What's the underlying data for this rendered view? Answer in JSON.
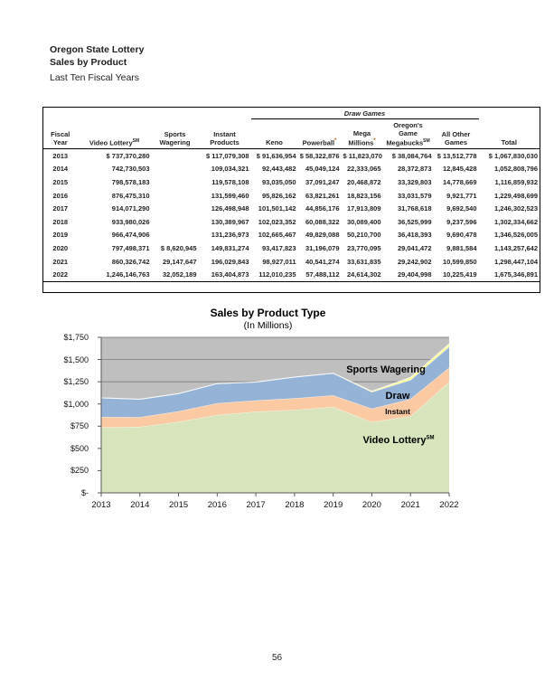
{
  "page": {
    "header": {
      "line1": "Oregon State Lottery",
      "line2": "Sales by Product",
      "line3": "Last Ten Fiscal Years"
    },
    "page_number": "56"
  },
  "table": {
    "group_header": "Draw Games",
    "columns": [
      {
        "key": "year",
        "label": "Fiscal\nYear"
      },
      {
        "key": "video_lottery",
        "label": "Video Lottery",
        "sup": "SM"
      },
      {
        "key": "sports_wagering",
        "label": "Sports\nWagering"
      },
      {
        "key": "instant",
        "label": "Instant\nProducts"
      },
      {
        "key": "keno",
        "label": "Keno",
        "group": "draw"
      },
      {
        "key": "powerball",
        "label": "Powerball",
        "mark": "*",
        "group": "draw"
      },
      {
        "key": "mega_millions",
        "label": "Mega\nMillions",
        "mark": "*",
        "group": "draw"
      },
      {
        "key": "megabucks",
        "label": "Oregon's\nGame\nMegabucks",
        "sup": "SM",
        "group": "draw"
      },
      {
        "key": "all_other",
        "label": "All Other\nGames",
        "group": "draw"
      },
      {
        "key": "total",
        "label": "Total"
      }
    ],
    "rows": [
      [
        "2013",
        "$ 737,370,280",
        "",
        "$ 117,079,308",
        "$ 91,636,954",
        "$ 58,322,876",
        "$ 11,823,070",
        "$ 38,084,764",
        "$ 13,512,778",
        "$ 1,067,830,030"
      ],
      [
        "2014",
        "742,730,503",
        "",
        "109,034,321",
        "92,443,482",
        "45,049,124",
        "22,333,065",
        "28,372,873",
        "12,845,428",
        "1,052,808,796"
      ],
      [
        "2015",
        "798,578,183",
        "",
        "119,578,108",
        "93,035,050",
        "37,091,247",
        "20,468,872",
        "33,329,803",
        "14,778,669",
        "1,116,859,932"
      ],
      [
        "2016",
        "876,475,310",
        "",
        "131,599,460",
        "95,826,162",
        "63,821,261",
        "18,823,156",
        "33,031,579",
        "9,921,771",
        "1,229,498,699"
      ],
      [
        "2017",
        "914,071,290",
        "",
        "126,498,948",
        "101,501,142",
        "44,856,176",
        "17,913,809",
        "31,768,618",
        "9,692,540",
        "1,246,302,523"
      ],
      [
        "2018",
        "933,980,026",
        "",
        "130,389,967",
        "102,023,352",
        "60,088,322",
        "30,089,400",
        "36,525,999",
        "9,237,596",
        "1,302,334,662"
      ],
      [
        "2019",
        "966,474,906",
        "",
        "131,236,973",
        "102,665,467",
        "49,829,088",
        "50,210,700",
        "36,418,393",
        "9,690,478",
        "1,346,526,005"
      ],
      [
        "2020",
        "797,498,371",
        "$ 8,620,945",
        "149,831,274",
        "93,417,823",
        "31,196,079",
        "23,770,095",
        "29,041,472",
        "9,881,584",
        "1,143,257,642"
      ],
      [
        "2021",
        "860,326,742",
        "29,147,647",
        "196,029,843",
        "98,927,011",
        "40,541,274",
        "33,631,835",
        "29,242,902",
        "10,599,850",
        "1,298,447,104"
      ],
      [
        "2022",
        "1,246,146,763",
        "32,052,189",
        "163,404,873",
        "112,010,235",
        "57,488,112",
        "24,614,302",
        "29,404,998",
        "10,225,419",
        "1,675,346,891"
      ]
    ]
  },
  "chart_data": {
    "type": "area",
    "stacked": true,
    "title": "Sales by Product Type",
    "subtitle": "(In Millions)",
    "x": [
      "2013",
      "2014",
      "2015",
      "2016",
      "2017",
      "2018",
      "2019",
      "2020",
      "2021",
      "2022"
    ],
    "series": [
      {
        "name": "Video Lottery℠",
        "color": "#d7e4bc",
        "values": [
          737.37,
          742.73,
          798.58,
          876.48,
          914.07,
          933.98,
          966.47,
          797.5,
          860.33,
          1246.15
        ]
      },
      {
        "name": "Instant",
        "color": "#fbcaa2",
        "values": [
          117.08,
          109.03,
          119.58,
          131.6,
          126.5,
          130.39,
          131.24,
          149.83,
          196.03,
          163.4
        ]
      },
      {
        "name": "Draw",
        "color": "#95b3d7",
        "values": [
          213.38,
          201.04,
          198.7,
          221.42,
          205.73,
          237.96,
          248.81,
          187.31,
          212.94,
          233.74
        ]
      },
      {
        "name": "Sports Wagering",
        "color": "#ffff99",
        "values": [
          0,
          0,
          0,
          0,
          0,
          0,
          0,
          8.62,
          29.15,
          32.05
        ]
      }
    ],
    "ylim": [
      0,
      1750
    ],
    "ytick_step": 250,
    "yticks": [
      "$-",
      "$250",
      "$500",
      "$750",
      "$1,000",
      "$1,250",
      "$1,500",
      "$1,750"
    ],
    "grid": true,
    "legend_position": "none",
    "plot_bg": "#bfbfbf",
    "grid_color": "#6f6f6f",
    "axis_color": "#595959",
    "annotations": [
      {
        "text": "Sports Wagering",
        "x": 427,
        "y": 74,
        "size": 11
      },
      {
        "text": "Draw",
        "x": 440,
        "y": 103,
        "size": 11
      },
      {
        "text": "Instant",
        "x": 440,
        "y": 120,
        "size": 8.5
      },
      {
        "text": "Video Lottery",
        "sup": "SM",
        "x": 441,
        "y": 152,
        "size": 11
      }
    ]
  }
}
